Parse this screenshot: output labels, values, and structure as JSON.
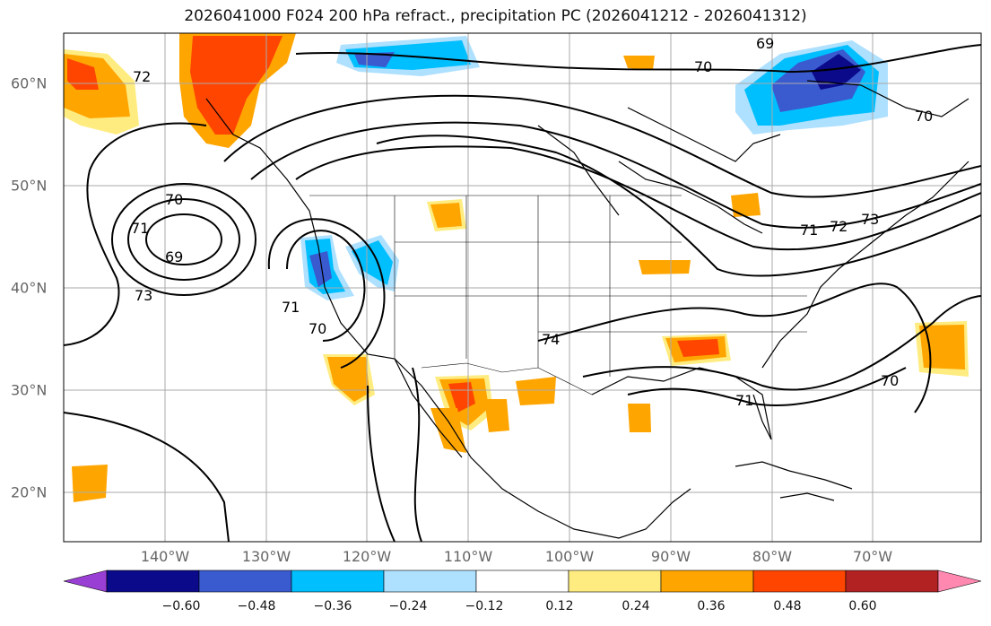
{
  "title": "2026041000 F024 200 hPa refract., precipitation PC (2026041212 - 2026041312)",
  "lon_labels": [
    "140°W",
    "130°W",
    "120°W",
    "110°W",
    "100°W",
    "90°W",
    "80°W",
    "70°W"
  ],
  "lat_labels": [
    "60°N",
    "50°N",
    "40°N",
    "30°N",
    "20°N"
  ],
  "contour_labels": [
    "69",
    "70",
    "71",
    "72",
    "73",
    "74"
  ],
  "colorbar": {
    "ticks": [
      "−0.60",
      "−0.48",
      "−0.36",
      "−0.24",
      "−0.12",
      "0.12",
      "0.24",
      "0.36",
      "0.48",
      "0.60"
    ],
    "colors": [
      "#9a3fd4",
      "#0a0a8a",
      "#3a5ad0",
      "#00bfff",
      "#aee0ff",
      "#ffffff",
      "#ffec80",
      "#ffa500",
      "#ff4500",
      "#b22222",
      "#ff88b0"
    ]
  }
}
